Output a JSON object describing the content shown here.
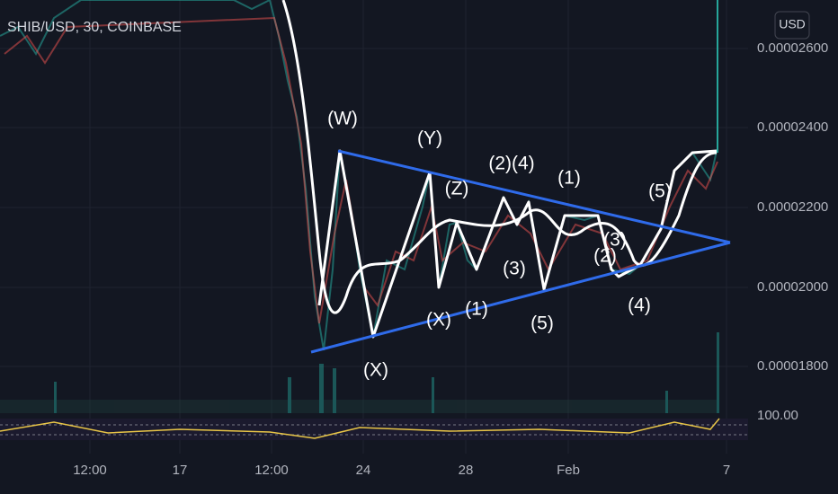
{
  "header": {
    "symbol": "SHIB/USD, 30, COINBASE",
    "currency": "USD"
  },
  "price_axis": [
    "0.00002600",
    "0.00002400",
    "0.00002200",
    "0.00002000",
    "0.00001800"
  ],
  "rsi_label": "100.00",
  "time_axis": [
    "12:00",
    "17",
    "12:00",
    "24",
    "28",
    "Feb",
    "7"
  ],
  "wave_labels": [
    "(W)",
    "(Y)",
    "(Z)",
    "(2)(4)",
    "(1)",
    "(5)",
    "(3)",
    "(3)",
    "(2)",
    "(1)",
    "(X)",
    "(5)",
    "(4)",
    "(X)"
  ]
}
